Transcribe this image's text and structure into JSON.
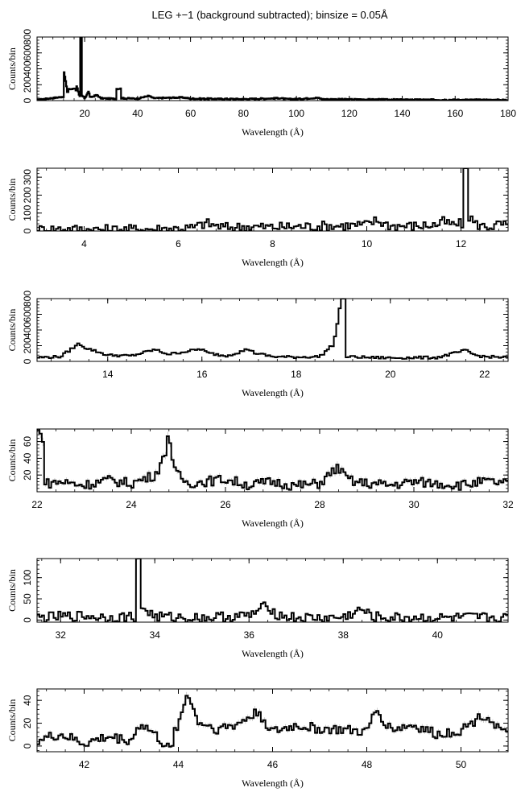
{
  "title": "LEG +−1 (background subtracted); binsize = 0.05Å",
  "colors": {
    "line": "#000000",
    "error": "#b0b0b0",
    "frame": "#000000"
  },
  "chart_data": [
    {
      "type": "line",
      "xlabel": "Wavelength (Å)",
      "ylabel": "Counts/bin",
      "xlim": [
        2,
        180
      ],
      "ylim": [
        0,
        800
      ],
      "xticks": [
        20,
        40,
        60,
        80,
        100,
        120,
        140,
        160,
        180
      ],
      "yticks": [
        0,
        200,
        400,
        600,
        800
      ],
      "series": [
        {
          "x": [
            2,
            6,
            10,
            12,
            12.3,
            13,
            13.5,
            14,
            15,
            16,
            16.8,
            17,
            18,
            18.9,
            19.1,
            20,
            21.6,
            22,
            24.8,
            26,
            30,
            33.7,
            34,
            40,
            44.2,
            46,
            57,
            60,
            80,
            94,
            96,
            100,
            108,
            110,
            140,
            160,
            180
          ],
          "y": [
            10,
            25,
            40,
            50,
            350,
            210,
            80,
            150,
            140,
            160,
            130,
            190,
            50,
            820,
            60,
            30,
            120,
            40,
            70,
            30,
            25,
            150,
            30,
            25,
            60,
            30,
            40,
            25,
            20,
            30,
            20,
            20,
            35,
            18,
            12,
            10,
            8
          ]
        }
      ]
    },
    {
      "type": "line",
      "xlabel": "Wavelength (Å)",
      "ylabel": "Counts/bin",
      "xlim": [
        3,
        13
      ],
      "ylim": [
        0,
        350
      ],
      "xticks": [
        4,
        6,
        8,
        10,
        12
      ],
      "yticks": [
        0,
        100,
        200,
        300
      ],
      "series": [
        {
          "x": [
            3,
            3.5,
            4,
            4.5,
            5,
            5.5,
            6,
            6.3,
            6.6,
            6.7,
            7,
            7.5,
            8,
            8.5,
            9,
            9.5,
            10,
            10.2,
            10.5,
            11,
            11.5,
            11.6,
            11.8,
            12,
            12.1,
            12.2,
            12.3,
            12.5,
            12.7,
            12.85,
            13
          ],
          "y": [
            8,
            12,
            10,
            8,
            10,
            12,
            15,
            18,
            45,
            35,
            20,
            25,
            22,
            25,
            28,
            30,
            35,
            60,
            30,
            28,
            35,
            55,
            35,
            40,
            360,
            80,
            40,
            25,
            28,
            40,
            30
          ]
        }
      ]
    },
    {
      "type": "line",
      "xlabel": "Wavelength (Å)",
      "ylabel": "Counts/bin",
      "xlim": [
        12.5,
        22.5
      ],
      "ylim": [
        0,
        800
      ],
      "xticks": [
        14,
        16,
        18,
        20,
        22
      ],
      "yticks": [
        0,
        200,
        400,
        600,
        800
      ],
      "series": [
        {
          "x": [
            12.5,
            13,
            13.4,
            13.5,
            13.7,
            14,
            14.5,
            15,
            15.1,
            15.3,
            16,
            16.1,
            16.5,
            16.8,
            17,
            17.1,
            17.5,
            18,
            18.5,
            18.8,
            18.97,
            19.1,
            19.5,
            20,
            21,
            21.6,
            21.8,
            22,
            22.5
          ],
          "y": [
            50,
            60,
            230,
            180,
            140,
            80,
            70,
            150,
            130,
            90,
            160,
            110,
            70,
            120,
            160,
            110,
            60,
            55,
            60,
            220,
            830,
            60,
            50,
            45,
            50,
            140,
            80,
            60,
            50
          ]
        }
      ]
    },
    {
      "type": "line",
      "xlabel": "Wavelength (Å)",
      "ylabel": "Counts/bin",
      "xlim": [
        22,
        32
      ],
      "ylim": [
        0,
        75
      ],
      "xticks": [
        22,
        24,
        26,
        28,
        30,
        32
      ],
      "yticks": [
        20,
        40,
        60
      ],
      "series": [
        {
          "x": [
            22,
            22.1,
            22.2,
            22.5,
            23,
            23.5,
            24,
            24.5,
            24.7,
            24.8,
            24.9,
            25.2,
            26,
            26.5,
            27,
            27.5,
            28,
            28.4,
            28.5,
            28.7,
            29,
            29.5,
            30,
            30.5,
            31,
            31.5,
            32
          ],
          "y": [
            75,
            65,
            10,
            12,
            8,
            14,
            10,
            20,
            40,
            75,
            25,
            10,
            15,
            8,
            12,
            7,
            10,
            30,
            20,
            12,
            10,
            8,
            12,
            10,
            8,
            12,
            10
          ]
        }
      ]
    },
    {
      "type": "line",
      "xlabel": "Wavelength (Å)",
      "ylabel": "Counts/bin",
      "xlim": [
        31.5,
        41.5
      ],
      "ylim": [
        -5,
        145
      ],
      "xticks": [
        32,
        34,
        36,
        38,
        40
      ],
      "yticks": [
        0,
        50,
        100
      ],
      "series": [
        {
          "x": [
            31.5,
            32,
            32.5,
            33,
            33.5,
            33.7,
            33.75,
            34,
            34.5,
            35,
            35.5,
            36,
            36.4,
            36.6,
            37,
            37.5,
            38,
            38.4,
            38.6,
            39,
            39.5,
            40,
            40.5,
            41,
            41.5
          ],
          "y": [
            5,
            8,
            10,
            6,
            8,
            145,
            30,
            8,
            6,
            5,
            8,
            10,
            35,
            12,
            5,
            4,
            6,
            25,
            8,
            5,
            6,
            4,
            5,
            6,
            4
          ]
        }
      ]
    },
    {
      "type": "line",
      "xlabel": "Wavelength (Å)",
      "ylabel": "Counts/bin",
      "xlim": [
        41,
        51
      ],
      "ylim": [
        -5,
        50
      ],
      "xticks": [
        42,
        44,
        46,
        48,
        50
      ],
      "yticks": [
        0,
        20,
        40
      ],
      "series": [
        {
          "x": [
            41,
            41.5,
            42,
            42.5,
            43,
            43.2,
            43.5,
            43.8,
            44,
            44.2,
            44.4,
            44.8,
            45.2,
            45.7,
            46,
            46.5,
            47,
            47.5,
            48,
            48.2,
            48.5,
            49,
            49.5,
            50,
            50.5,
            51
          ],
          "y": [
            5,
            10,
            2,
            8,
            5,
            20,
            10,
            -3,
            18,
            48,
            22,
            15,
            18,
            30,
            12,
            18,
            15,
            14,
            12,
            32,
            15,
            18,
            10,
            14,
            28,
            8
          ]
        }
      ]
    }
  ]
}
